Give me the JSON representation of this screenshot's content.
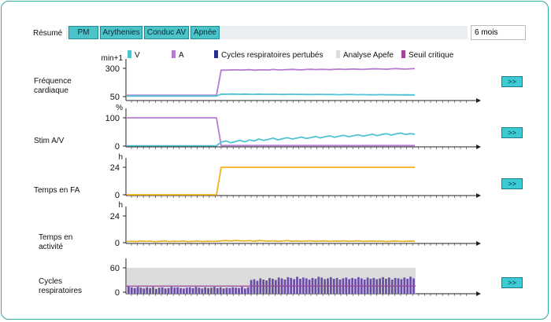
{
  "header": {
    "summary_label": "Résumé",
    "tabs": [
      {
        "label": "PM"
      },
      {
        "label": "Arythenies"
      },
      {
        "label": "Conduc AV"
      },
      {
        "label": "Apnée"
      }
    ],
    "period": "6 mois"
  },
  "legend": [
    {
      "label": "V",
      "color": "#4fc3d4"
    },
    {
      "label": "A",
      "color": "#b77ccf"
    },
    {
      "label": "Cycles respiratoires pertubés",
      "color": "#2b2f8c"
    },
    {
      "label": "Analyse Apefe",
      "color": "#dcdcdc"
    },
    {
      "label": "Seuil critique",
      "color": "#a04598"
    }
  ],
  "panels": [
    {
      "label": "Fréquence\ncardiaque",
      "unit": "min+1",
      "ticks": [
        "300",
        "50"
      ],
      "expand_label": ">>"
    },
    {
      "label": "Stim A/V",
      "unit": "%",
      "ticks": [
        "100",
        "0"
      ],
      "expand_label": ">>"
    },
    {
      "label": "Temps en FA",
      "unit": "h",
      "ticks": [
        "24",
        "0"
      ],
      "expand_label": ">>"
    },
    {
      "label": "Temps en\nactivité",
      "unit": "h",
      "ticks": [
        "24",
        "0"
      ]
    },
    {
      "label": "Cycles\nrespiratoires",
      "unit": "",
      "ticks": [
        "60",
        "0"
      ],
      "expand_label": ">>"
    }
  ],
  "chart_data": [
    {
      "type": "line",
      "series": [
        {
          "name": "A",
          "values": [
            62,
            62,
            62,
            62,
            62,
            62,
            62,
            62,
            62,
            62,
            62,
            62,
            62,
            62,
            62,
            62,
            62,
            62,
            62,
            62,
            285,
            284,
            286,
            287,
            285,
            286,
            288,
            284,
            286,
            287,
            285,
            290,
            286,
            287,
            289,
            291,
            288,
            286,
            290,
            292,
            289,
            291,
            290,
            288,
            291,
            293,
            290,
            292,
            294,
            292,
            290,
            293,
            295,
            296,
            294,
            292,
            296,
            298,
            295,
            293,
            296,
            298
          ]
        },
        {
          "name": "V",
          "values": [
            55,
            55,
            55,
            55,
            55,
            55,
            55,
            55,
            55,
            55,
            55,
            55,
            55,
            55,
            55,
            55,
            55,
            55,
            55,
            55,
            72,
            71,
            73,
            72,
            71,
            72,
            71,
            70,
            72,
            71,
            70,
            71,
            70,
            69,
            70,
            71,
            69,
            70,
            69,
            68,
            69,
            70,
            68,
            69,
            68,
            67,
            68,
            69,
            68,
            67,
            68,
            67,
            66,
            67,
            68,
            66,
            67,
            66,
            65,
            66,
            65,
            65
          ]
        }
      ],
      "ylim": [
        50,
        300
      ]
    },
    {
      "type": "line",
      "series": [
        {
          "name": "A",
          "values": [
            100,
            100,
            100,
            100,
            100,
            100,
            100,
            100,
            100,
            100,
            100,
            100,
            100,
            100,
            100,
            100,
            100,
            100,
            100,
            100,
            2,
            2,
            2,
            2,
            2,
            2,
            2,
            2,
            2,
            2,
            2,
            2,
            2,
            2,
            2,
            2,
            2,
            2,
            2,
            2,
            2,
            2,
            2,
            2,
            2,
            2,
            2,
            2,
            2,
            2,
            2,
            2,
            2,
            2,
            2,
            2,
            2,
            2,
            2,
            2,
            2,
            2
          ]
        },
        {
          "name": "V",
          "values": [
            1,
            1,
            1,
            1,
            1,
            1,
            1,
            1,
            1,
            1,
            1,
            1,
            1,
            1,
            1,
            1,
            1,
            1,
            1,
            1,
            14,
            18,
            12,
            16,
            20,
            15,
            22,
            18,
            25,
            20,
            24,
            28,
            22,
            26,
            30,
            25,
            28,
            32,
            27,
            30,
            34,
            29,
            33,
            36,
            31,
            35,
            38,
            33,
            37,
            40,
            35,
            38,
            42,
            37,
            41,
            44,
            39,
            43,
            46,
            41,
            44,
            42
          ]
        }
      ],
      "ylim": [
        0,
        100
      ]
    },
    {
      "type": "line",
      "series": [
        {
          "name": "FA",
          "values": [
            0,
            0,
            0,
            0,
            0,
            0,
            0,
            0,
            0,
            0,
            0,
            0,
            0,
            0,
            0,
            0,
            0,
            0,
            0,
            0,
            24,
            24,
            24,
            24,
            24,
            24,
            24,
            24,
            24,
            24,
            24,
            24,
            24,
            24,
            24,
            24,
            24,
            24,
            24,
            24,
            24,
            24,
            24,
            24,
            24,
            24,
            24,
            24,
            24,
            24,
            24,
            24,
            24,
            24,
            24,
            24,
            24,
            24,
            24,
            24,
            24,
            24
          ]
        }
      ],
      "ylim": [
        0,
        24
      ]
    },
    {
      "type": "line",
      "series": [
        {
          "name": "Activité",
          "values": [
            1.0,
            1.3,
            0.9,
            1.5,
            1.1,
            1.4,
            0.8,
            1.2,
            1.6,
            1.0,
            1.3,
            1.1,
            1.5,
            0.9,
            1.2,
            1.4,
            1.0,
            1.3,
            1.1,
            1.2,
            1.6,
            1.9,
            1.4,
            2.0,
            1.7,
            1.5,
            1.8,
            1.3,
            1.9,
            1.6,
            1.4,
            1.7,
            1.2,
            1.5,
            1.8,
            1.3,
            1.6,
            1.1,
            1.5,
            1.7,
            1.2,
            1.4,
            1.6,
            1.1,
            1.5,
            1.3,
            1.7,
            1.2,
            1.4,
            1.6,
            1.1,
            1.3,
            1.5,
            1.2,
            1.4,
            1.0,
            1.3,
            1.5,
            1.1,
            1.2,
            1.4,
            1.3
          ]
        }
      ],
      "ylim": [
        0,
        24
      ]
    },
    {
      "type": "bar",
      "series": [
        {
          "name": "Cycles respiratoires pertubés",
          "values": [
            14,
            12,
            10,
            13,
            11,
            9,
            12,
            10,
            13,
            8,
            11,
            12,
            9,
            10,
            13,
            11,
            12,
            10,
            9,
            11,
            12,
            10,
            13,
            11,
            9,
            12,
            10,
            11,
            13,
            10,
            12,
            9,
            11,
            10,
            12,
            11,
            10,
            13,
            9,
            12,
            30,
            32,
            28,
            34,
            31,
            29,
            35,
            33,
            30,
            36,
            34,
            31,
            37,
            35,
            32,
            38,
            33,
            36,
            34,
            31,
            35,
            33,
            38,
            36,
            32,
            34,
            37,
            33,
            35,
            31,
            34,
            36,
            32,
            35,
            33,
            37,
            34,
            31,
            36,
            33,
            35,
            32,
            34,
            37,
            33,
            36,
            31,
            35,
            34,
            32,
            36,
            33,
            38,
            34
          ]
        }
      ],
      "ylim": [
        0,
        60
      ],
      "threshold": 15
    }
  ]
}
